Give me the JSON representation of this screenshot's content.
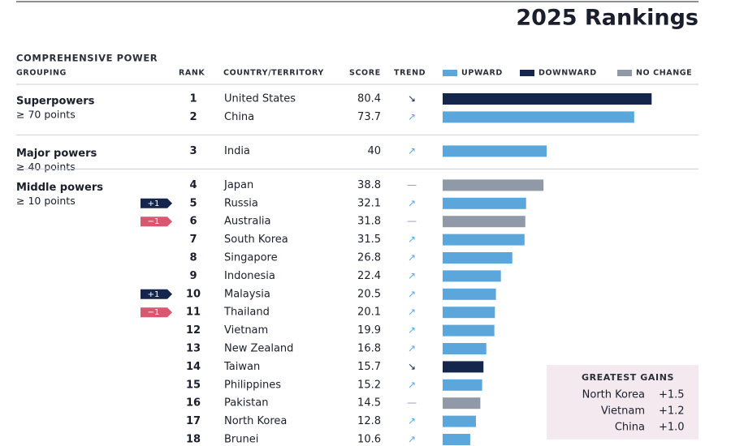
{
  "header": {
    "title": "2025 Rankings",
    "section": "COMPREHENSIVE POWER"
  },
  "columns": {
    "grouping": "GROUPING",
    "rank": "RANK",
    "country": "COUNTRY/TERRITORY",
    "score": "SCORE",
    "trend": "TREND"
  },
  "legend": [
    {
      "label": "UPWARD",
      "color": "#5ba7dc"
    },
    {
      "label": "DOWNWARD",
      "color": "#14264b"
    },
    {
      "label": "NO CHANGE",
      "color": "#9099a8"
    }
  ],
  "groups": [
    {
      "name": "Superpowers",
      "criterion": "≥ 70 points",
      "rows": [
        {
          "rank": 1,
          "country": "United States",
          "score": 80.4,
          "trend": "↘",
          "color": "#14264b"
        },
        {
          "rank": 2,
          "country": "China",
          "score": 73.7,
          "trend": "↗",
          "color": "#5ba7dc"
        }
      ]
    },
    {
      "name": "Major powers",
      "criterion": "≥ 40 points",
      "rows": [
        {
          "rank": 3,
          "country": "India",
          "score": 40.0,
          "trend": "↗",
          "color": "#5ba7dc"
        }
      ]
    },
    {
      "name": "Middle powers",
      "criterion": "≥ 10 points",
      "rows": [
        {
          "rank": 4,
          "country": "Japan",
          "score": 38.8,
          "trend": "—",
          "color": "#9099a8"
        },
        {
          "rank": 5,
          "country": "Russia",
          "score": 32.1,
          "trend": "↗",
          "color": "#5ba7dc",
          "change": "+1",
          "change_color": "#14264b"
        },
        {
          "rank": 6,
          "country": "Australia",
          "score": 31.8,
          "trend": "—",
          "color": "#9099a8",
          "change": "−1",
          "change_color": "#d9576f"
        },
        {
          "rank": 7,
          "country": "South Korea",
          "score": 31.5,
          "trend": "↗",
          "color": "#5ba7dc"
        },
        {
          "rank": 8,
          "country": "Singapore",
          "score": 26.8,
          "trend": "↗",
          "color": "#5ba7dc"
        },
        {
          "rank": 9,
          "country": "Indonesia",
          "score": 22.4,
          "trend": "↗",
          "color": "#5ba7dc"
        },
        {
          "rank": 10,
          "country": "Malaysia",
          "score": 20.5,
          "trend": "↗",
          "color": "#5ba7dc",
          "change": "+1",
          "change_color": "#14264b"
        },
        {
          "rank": 11,
          "country": "Thailand",
          "score": 20.1,
          "trend": "↗",
          "color": "#5ba7dc",
          "change": "−1",
          "change_color": "#d9576f"
        },
        {
          "rank": 12,
          "country": "Vietnam",
          "score": 19.9,
          "trend": "↗",
          "color": "#5ba7dc"
        },
        {
          "rank": 13,
          "country": "New Zealand",
          "score": 16.8,
          "trend": "↗",
          "color": "#5ba7dc"
        },
        {
          "rank": 14,
          "country": "Taiwan",
          "score": 15.7,
          "trend": "↘",
          "color": "#14264b"
        },
        {
          "rank": 15,
          "country": "Philippines",
          "score": 15.2,
          "trend": "↗",
          "color": "#5ba7dc"
        },
        {
          "rank": 16,
          "country": "Pakistan",
          "score": 14.5,
          "trend": "—",
          "color": "#9099a8"
        },
        {
          "rank": 17,
          "country": "North Korea",
          "score": 12.8,
          "trend": "↗",
          "color": "#5ba7dc"
        },
        {
          "rank": 18,
          "country": "Brunei",
          "score": 10.6,
          "trend": "↗",
          "color": "#5ba7dc"
        }
      ]
    }
  ],
  "gains": {
    "title": "GREATEST GAINS",
    "rows": [
      {
        "country": "North Korea",
        "change": "+1.5"
      },
      {
        "country": "Vietnam",
        "change": "+1.2"
      },
      {
        "country": "China",
        "change": "+1.0"
      }
    ]
  }
}
